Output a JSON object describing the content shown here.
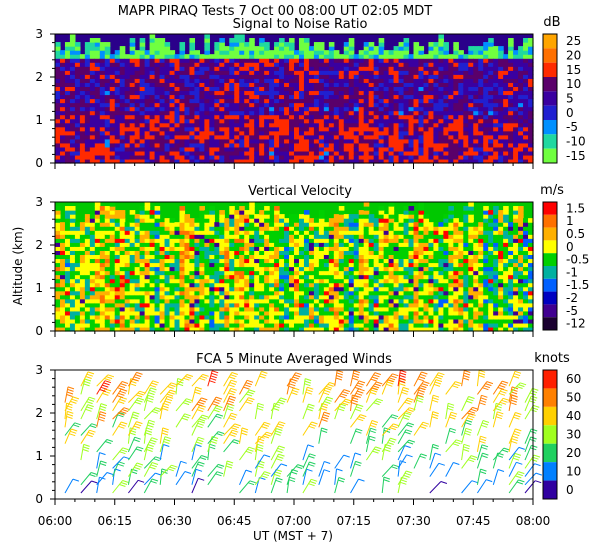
{
  "figure": {
    "header": "MAPR PIRAQ Tests  7 Oct 00  08:00 UT  02:05  MDT",
    "ylabel": "Altitude (km)",
    "xlabel": "UT  (MST + 7)",
    "x_ticks": [
      "06:00",
      "06:15",
      "06:30",
      "06:45",
      "07:00",
      "07:15",
      "07:30",
      "07:45",
      "08:00"
    ]
  },
  "chart_data": [
    {
      "type": "heatmap",
      "title": "Signal to Noise Ratio",
      "unit": "dB",
      "x_range_ut": [
        "06:00",
        "08:00"
      ],
      "ylim": [
        0,
        3
      ],
      "y_ticks": [
        "0",
        "1",
        "2",
        "3"
      ],
      "colorbar": {
        "labels": [
          "25",
          "20",
          "15",
          "10",
          "5",
          "0",
          "-5",
          "-10",
          "-15"
        ],
        "colors": [
          "#ffa500",
          "#ff7000",
          "#ff2a00",
          "#5a006a",
          "#3a00a0",
          "#2020d0",
          "#0090ff",
          "#20d8a0",
          "#70ff40"
        ]
      }
    },
    {
      "type": "heatmap",
      "title": "Vertical Velocity",
      "unit": "m/s",
      "x_range_ut": [
        "06:00",
        "08:00"
      ],
      "ylim": [
        0,
        3
      ],
      "y_ticks": [
        "0",
        "1",
        "2",
        "3"
      ],
      "colorbar": {
        "labels": [
          "1.5",
          "1",
          "0.5",
          "0",
          "-0.5",
          "-1",
          "-1.5",
          "-2",
          "-5",
          "-12"
        ],
        "colors": [
          "#ff0000",
          "#ff7000",
          "#ffb000",
          "#ffff00",
          "#00d000",
          "#00b0a0",
          "#0060ff",
          "#0000c0",
          "#400090",
          "#1a0030"
        ]
      }
    },
    {
      "type": "wind-barbs",
      "title": "FCA 5 Minute Averaged Winds",
      "unit": "knots",
      "x_range_ut": [
        "06:00",
        "08:00"
      ],
      "ylim": [
        0,
        3
      ],
      "y_ticks": [
        "0",
        "1",
        "2",
        "3"
      ],
      "colorbar": {
        "labels": [
          "60",
          "50",
          "40",
          "30",
          "20",
          "10",
          "0"
        ],
        "colors": [
          "#ff2000",
          "#ff8000",
          "#ffd000",
          "#a0ff20",
          "#20d060",
          "#0080ff",
          "#3000a0"
        ]
      }
    }
  ]
}
